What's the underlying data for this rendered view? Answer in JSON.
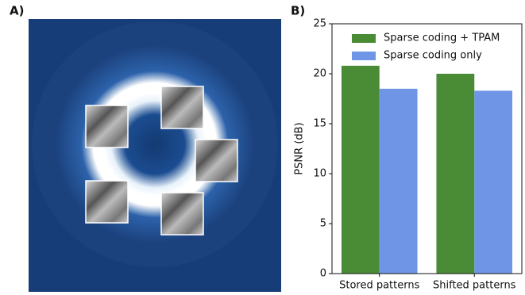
{
  "panel_labels": [
    "A)",
    "B)"
  ],
  "chart_data": {
    "type": "bar",
    "categories": [
      "Stored patterns",
      "Shifted patterns"
    ],
    "series": [
      {
        "name": "Sparse coding + TPAM",
        "color": "#4a8b35",
        "values": [
          20.8,
          20.0
        ]
      },
      {
        "name": "Sparse coding only",
        "color": "#6f96e6",
        "values": [
          18.5,
          18.3
        ]
      }
    ],
    "ylabel": "PSNR (dB)",
    "ylim": [
      0,
      25
    ],
    "yticks": [
      0,
      5,
      10,
      15,
      20,
      25
    ],
    "legend": "upper right"
  }
}
